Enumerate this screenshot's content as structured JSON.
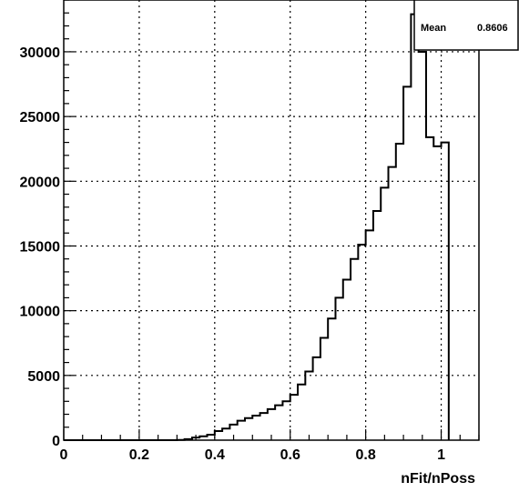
{
  "chart_data": {
    "type": "histogram",
    "title": "",
    "xlabel": "nFit/nPoss",
    "ylabel": "",
    "xlim": [
      0,
      1.1
    ],
    "ylim": [
      0,
      34000
    ],
    "grid": true,
    "x_ticks": [
      0,
      0.2,
      0.4,
      0.6,
      0.8,
      1
    ],
    "x_tick_labels": [
      "0",
      "0.2",
      "0.4",
      "0.6",
      "0.8",
      "1"
    ],
    "y_ticks": [
      0,
      5000,
      10000,
      15000,
      20000,
      25000,
      30000
    ],
    "y_tick_labels": [
      "0",
      "5000",
      "10000",
      "15000",
      "20000",
      "25000",
      "30000"
    ],
    "bin_width": 0.02,
    "bins_start": [
      0.0,
      0.02,
      0.04,
      0.06,
      0.08,
      0.1,
      0.12,
      0.14,
      0.16,
      0.18,
      0.2,
      0.22,
      0.24,
      0.26,
      0.28,
      0.3,
      0.32,
      0.34,
      0.36,
      0.38,
      0.4,
      0.42,
      0.44,
      0.46,
      0.48,
      0.5,
      0.52,
      0.54,
      0.56,
      0.58,
      0.6,
      0.62,
      0.64,
      0.66,
      0.68,
      0.7,
      0.72,
      0.74,
      0.76,
      0.78,
      0.8,
      0.82,
      0.84,
      0.86,
      0.88,
      0.9,
      0.92,
      0.94,
      0.96,
      0.98,
      1.0
    ],
    "counts": [
      0,
      0,
      0,
      0,
      0,
      0,
      0,
      0,
      0,
      0,
      0,
      0,
      0,
      0,
      0,
      20,
      80,
      200,
      300,
      420,
      700,
      900,
      1200,
      1500,
      1700,
      1900,
      2100,
      2400,
      2700,
      3000,
      3500,
      4300,
      5300,
      6400,
      7900,
      9400,
      11000,
      12400,
      14000,
      15100,
      16200,
      17700,
      19500,
      21100,
      22900,
      27300,
      32900,
      30000,
      23400,
      22700,
      23000
    ],
    "stats": {
      "label": "Mean",
      "value": "0.8606"
    }
  },
  "stats_box": {
    "label": "Mean",
    "value": "0.8606"
  }
}
